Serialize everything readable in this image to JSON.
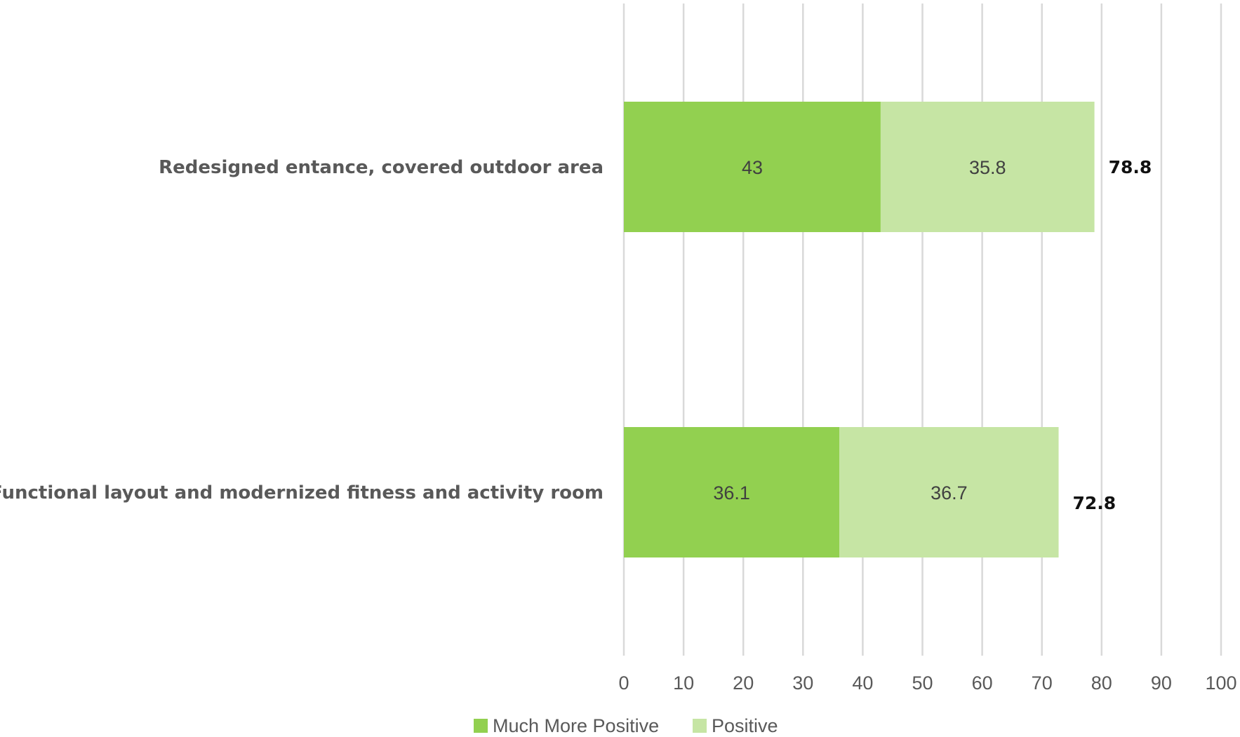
{
  "chart_data": {
    "type": "bar",
    "orientation": "horizontal",
    "stacked": true,
    "categories": [
      "Redesigned entance, covered outdoor area",
      "Functional layout and modernized fitness and activity room"
    ],
    "series": [
      {
        "name": "Much More Positive",
        "values": [
          43,
          36.1
        ],
        "labels": [
          "43",
          "36.1"
        ],
        "color": "#92d050"
      },
      {
        "name": "Positive",
        "values": [
          35.8,
          36.7
        ],
        "labels": [
          "35.8",
          "36.7"
        ],
        "color": "#c6e5a4"
      }
    ],
    "totals": [
      "78.8",
      "72.8"
    ],
    "xlim": [
      0,
      100
    ],
    "x_ticks": [
      "0",
      "10",
      "20",
      "30",
      "40",
      "50",
      "60",
      "70",
      "80",
      "90",
      "100"
    ],
    "grid": true,
    "legend_position": "bottom"
  }
}
